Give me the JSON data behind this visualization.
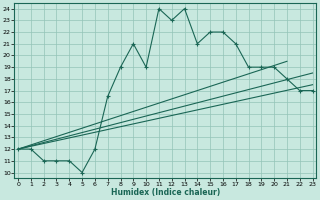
{
  "xlabel": "Humidex (Indice chaleur)",
  "xlim": [
    -0.3,
    23.3
  ],
  "ylim": [
    9.5,
    24.5
  ],
  "xticks": [
    0,
    1,
    2,
    3,
    4,
    5,
    6,
    7,
    8,
    9,
    10,
    11,
    12,
    13,
    14,
    15,
    16,
    17,
    18,
    19,
    20,
    21,
    22,
    23
  ],
  "yticks": [
    10,
    11,
    12,
    13,
    14,
    15,
    16,
    17,
    18,
    19,
    20,
    21,
    22,
    23,
    24
  ],
  "bg_color": "#c8e8df",
  "grid_color": "#93c4b8",
  "line_color": "#1a6655",
  "jagged_x": [
    0,
    1,
    2,
    3,
    4,
    5,
    6,
    7,
    8,
    9,
    10,
    11,
    12,
    13,
    14,
    15,
    16,
    17,
    18,
    19,
    20,
    21,
    22,
    23
  ],
  "jagged_y": [
    12,
    12,
    11,
    11,
    11,
    10,
    12,
    16.5,
    19,
    21,
    19,
    24,
    23,
    24,
    21,
    22,
    22,
    21,
    19,
    19,
    19,
    18,
    17,
    17
  ],
  "line1_x": [
    0,
    23
  ],
  "line1_y": [
    12,
    17.5
  ],
  "line2_x": [
    0,
    23
  ],
  "line2_y": [
    12,
    18.5
  ],
  "line3_x": [
    0,
    21
  ],
  "line3_y": [
    12,
    19.5
  ]
}
